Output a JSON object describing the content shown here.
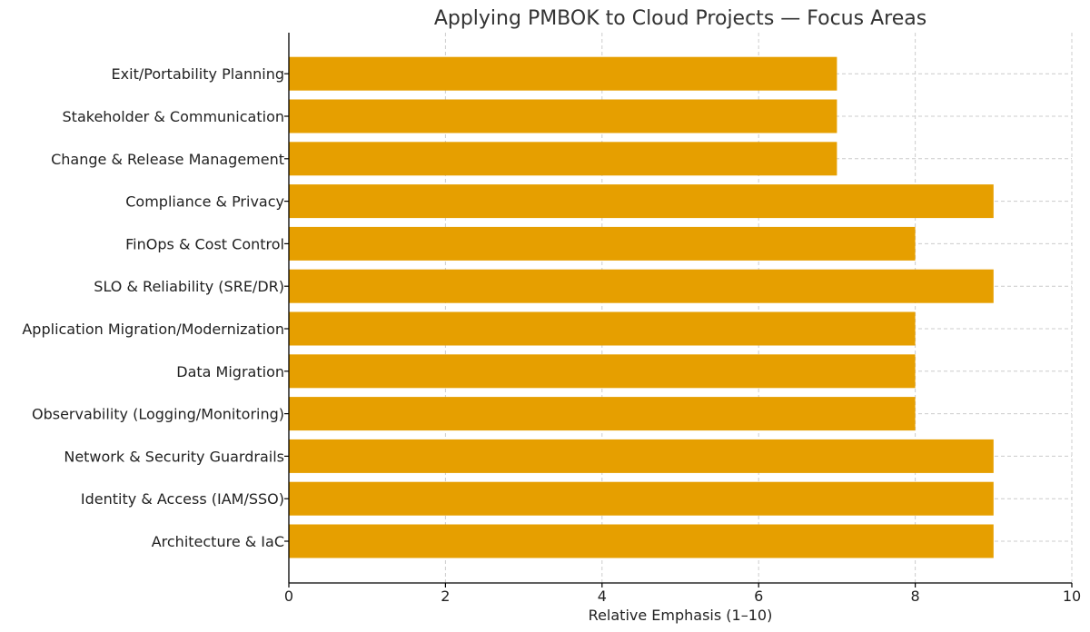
{
  "chart_data": {
    "type": "bar",
    "orientation": "horizontal",
    "title": "Applying PMBOK to Cloud Projects — Focus Areas",
    "xlabel": "Relative Emphasis (1–10)",
    "ylabel": "",
    "xlim": [
      0,
      10
    ],
    "xticks": [
      0,
      2,
      4,
      6,
      8,
      10
    ],
    "grid": true,
    "bar_color": "#E69F00",
    "categories": [
      "Architecture & IaC",
      "Identity & Access (IAM/SSO)",
      "Network & Security Guardrails",
      "Observability (Logging/Monitoring)",
      "Data Migration",
      "Application Migration/Modernization",
      "SLO & Reliability (SRE/DR)",
      "FinOps & Cost Control",
      "Compliance & Privacy",
      "Change & Release Management",
      "Stakeholder & Communication",
      "Exit/Portability Planning"
    ],
    "values": [
      9,
      9,
      9,
      8,
      8,
      8,
      9,
      8,
      9,
      7,
      7,
      7
    ]
  }
}
